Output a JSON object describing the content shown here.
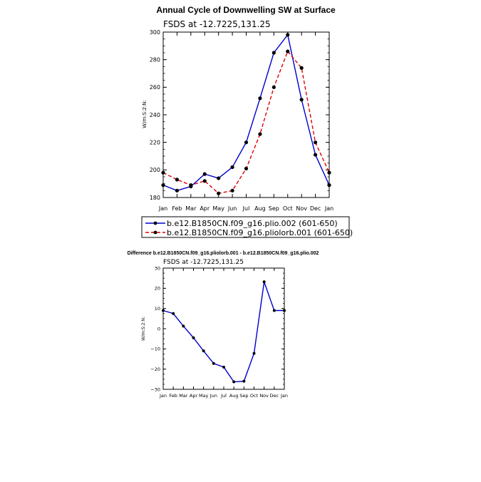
{
  "chart_data": [
    {
      "type": "line",
      "title": "Annual Cycle of Downwelling SW at Surface",
      "subtitle": "FSDS at -12.7225,131.25",
      "ylabel": "W/m:S:2:N:",
      "xlabel": "",
      "ylim": [
        180,
        300
      ],
      "yticks": [
        180,
        200,
        220,
        240,
        260,
        280,
        300
      ],
      "categories": [
        "Jan",
        "Feb",
        "Mar",
        "Apr",
        "May",
        "Jun",
        "Jul",
        "Aug",
        "Sep",
        "Oct",
        "Nov",
        "Dec",
        "Jan"
      ],
      "legend_position": "below",
      "series": [
        {
          "name": "b.e12.B1850CN.f09_g16.plio.002 (601-650)",
          "color": "#0000cc",
          "dash": "solid",
          "values": [
            189,
            185,
            188,
            197,
            194,
            202,
            220,
            252,
            285,
            298,
            251,
            211,
            189
          ]
        },
        {
          "name": "b.e12.B1850CN.f09_g16.pliolorb.001 (601-650)",
          "color": "#dd0000",
          "dash": "dashed",
          "values": [
            198,
            193,
            189,
            192,
            183,
            185,
            201,
            226,
            260,
            286,
            274,
            220,
            198
          ]
        }
      ]
    },
    {
      "type": "line",
      "title": "Difference b.e12.B1850CN.f09_g16.pliolorb.001 - b.e12.B1850CN.f09_g16.plio.002",
      "subtitle": "FSDS at -12.7225,131.25",
      "ylabel": "W/m:S:2:N:",
      "xlabel": "",
      "ylim": [
        -30,
        30
      ],
      "yticks": [
        -30,
        -20,
        -10,
        0,
        10,
        20,
        30
      ],
      "categories": [
        "Jan",
        "Feb",
        "Mar",
        "Apr",
        "May",
        "Jun",
        "Jul",
        "Aug",
        "Sep",
        "Oct",
        "Nov",
        "Dec",
        "Jan"
      ],
      "series": [
        {
          "color": "#0000cc",
          "values": [
            9,
            7.5,
            1.3,
            -4.5,
            -11,
            -17.2,
            -19,
            -26.3,
            -26,
            -12.2,
            23.2,
            9,
            9
          ]
        }
      ]
    }
  ]
}
